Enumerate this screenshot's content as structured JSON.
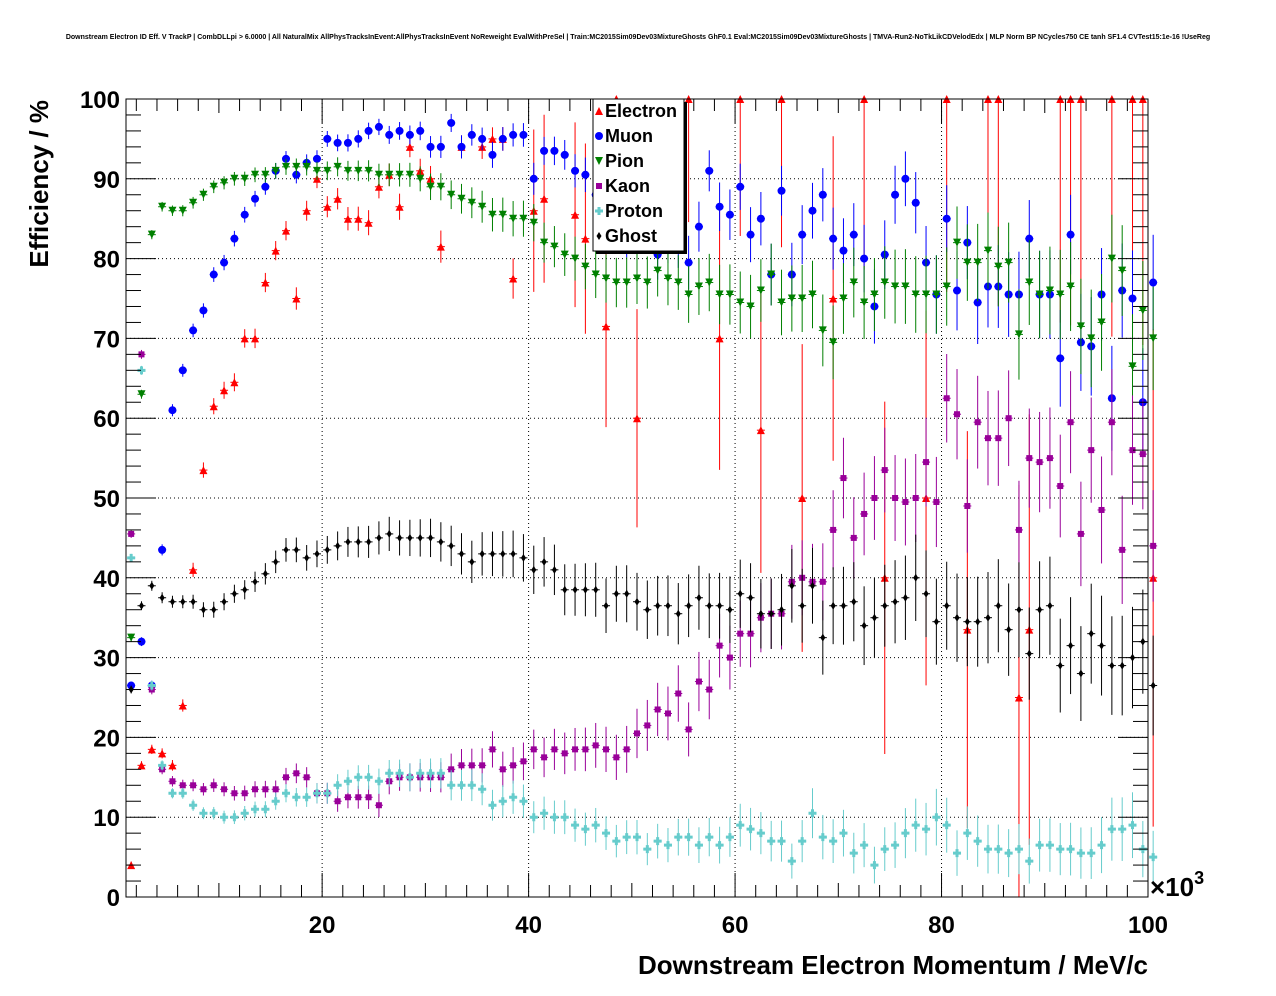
{
  "title": "Downstream Electron ID Eff. V TrackP | CombDLLpi > 6.0000 | All NaturalMix AllPhysTracksInEvent:AllPhysTracksInEvent NoReweight EvalWithPreSel | Train:MC2015Sim09Dev03MixtureGhosts GhF0.1 Eval:MC2015Sim09Dev03MixtureGhosts | TMVA-Run2-NoTkLikCDVelodEdx | MLP Norm BP NCycles750 CE tanh SF1.4 CVTest15:1e-16 !UseReg",
  "chart_data": {
    "type": "scatter",
    "title": "Downstream Electron ID Eff. V TrackP | CombDLLpi > 6.0000 | All NaturalMix AllPhysTracksInEvent:AllPhysTracksInEvent NoReweight EvalWithPreSel | Train:MC2015Sim09Dev03MixtureGhosts GhF0.1 Eval:MC2015Sim09Dev03MixtureGhosts | TMVA-Run2-NoTkLikCDVelodEdx | MLP Norm BP NCycles750 CE tanh SF1.4 CVTest15:1e-16 !UseReg",
    "xlabel": "Downstream Electron Momentum / MeV/c",
    "ylabel": "Efficiency / %",
    "x_multiplier": "×10^3",
    "x_multiplier_base": "×10",
    "x_multiplier_exp": "3",
    "xlim": [
      1,
      100
    ],
    "ylim": [
      0,
      100
    ],
    "xticks": [
      20,
      40,
      60,
      80,
      100
    ],
    "yticks": [
      0,
      10,
      20,
      30,
      40,
      50,
      60,
      70,
      80,
      90,
      100
    ],
    "xtick_labels": [
      "20",
      "40",
      "60",
      "80",
      "100"
    ],
    "ytick_labels": [
      "0",
      "10",
      "20",
      "30",
      "40",
      "50",
      "60",
      "70",
      "80",
      "90",
      "100"
    ],
    "grid": true,
    "legend_position": "top-center",
    "series": [
      {
        "name": "Electron",
        "color": "#ff0000",
        "marker": "triangle-up",
        "x": [
          1.5,
          2.5,
          3.5,
          4.5,
          5.5,
          6.5,
          7.5,
          8.5,
          9.5,
          10.5,
          11.5,
          12.5,
          13.5,
          14.5,
          15.5,
          16.5,
          17.5,
          18.5,
          19.5,
          20.5,
          21.5,
          22.5,
          23.5,
          24.5,
          25.5,
          26.5,
          27.5,
          28.5,
          29.5,
          30.5,
          31.5,
          33.5,
          35.5,
          36.5,
          37.5,
          38.5,
          40.5,
          41.5,
          44.5,
          45.5,
          47.5,
          48.5,
          50.5,
          55.5,
          58.5,
          60.5,
          62.5,
          64.5,
          66.5,
          69.5,
          72.5,
          74.5,
          78.5,
          80.5,
          82.5,
          84.5,
          85.5,
          87.5,
          88.5,
          91.5,
          92.5,
          93.5,
          96.5,
          98.5,
          99.5,
          100.5
        ],
        "y": [
          4,
          16.5,
          18.5,
          18,
          16.5,
          24,
          41,
          53.5,
          61.5,
          63.5,
          64.5,
          70,
          70,
          77,
          81,
          83.5,
          75,
          86,
          90,
          86.5,
          87.5,
          85,
          85,
          84.5,
          89,
          90.5,
          86.5,
          94,
          91,
          90,
          81.5,
          94,
          94,
          95,
          95,
          77.5,
          86,
          87.5,
          85.5,
          82.5,
          71.5,
          100,
          60,
          100,
          70,
          100,
          58.5,
          100,
          50,
          75,
          100,
          40,
          50,
          100,
          33.5,
          100,
          100,
          25,
          33.5,
          100,
          100,
          100,
          100,
          100,
          100,
          40
        ]
      },
      {
        "name": "Muon",
        "color": "#0000ff",
        "marker": "circle",
        "x": [
          1.5,
          2.5,
          3.5,
          4.5,
          5.5,
          6.5,
          7.5,
          8.5,
          9.5,
          10.5,
          11.5,
          12.5,
          13.5,
          14.5,
          15.5,
          16.5,
          17.5,
          18.5,
          19.5,
          20.5,
          21.5,
          22.5,
          23.5,
          24.5,
          25.5,
          26.5,
          27.5,
          28.5,
          29.5,
          30.5,
          31.5,
          32.5,
          33.5,
          34.5,
          35.5,
          36.5,
          37.5,
          38.5,
          39.5,
          40.5,
          41.5,
          42.5,
          43.5,
          44.5,
          45.5,
          46.5,
          47.5,
          48.5,
          49.5,
          50.5,
          51.5,
          52.5,
          53.5,
          54.5,
          55.5,
          56.5,
          57.5,
          58.5,
          59.5,
          60.5,
          61.5,
          62.5,
          63.5,
          64.5,
          65.5,
          66.5,
          67.5,
          68.5,
          69.5,
          70.5,
          71.5,
          72.5,
          73.5,
          74.5,
          75.5,
          76.5,
          77.5,
          78.5,
          79.5,
          80.5,
          81.5,
          82.5,
          83.5,
          84.5,
          85.5,
          86.5,
          87.5,
          88.5,
          89.5,
          90.5,
          91.5,
          92.5,
          93.5,
          94.5,
          95.5,
          96.5,
          97.5,
          98.5,
          99.5,
          100.5
        ],
        "y": [
          26.5,
          32,
          26.5,
          43.5,
          61,
          66,
          71,
          73.5,
          78,
          79.5,
          82.5,
          85.5,
          87.5,
          89,
          91,
          92.5,
          90.5,
          92,
          92.5,
          95,
          94.5,
          94.5,
          95,
          96,
          96.5,
          95.5,
          96,
          95.5,
          96,
          94,
          94,
          97,
          94,
          95.5,
          95,
          93,
          95,
          95.5,
          95.5,
          90,
          93.5,
          93.5,
          93,
          91,
          90.5,
          88,
          86.5,
          84,
          83,
          85,
          87,
          80.5,
          82.5,
          82,
          79.5,
          84,
          91,
          86.5,
          85.5,
          89,
          83,
          85,
          78,
          88.5,
          78,
          83,
          86,
          88,
          82.5,
          81,
          83,
          80,
          74,
          80.5,
          88,
          90,
          87,
          79.5,
          75.5,
          85,
          76,
          82,
          74.5,
          76.5,
          76.5,
          75.5,
          75.5,
          82.5,
          75.5,
          75.5,
          67.5,
          83,
          69.5,
          69,
          75.5,
          62.5,
          76,
          75,
          62,
          77
        ]
      },
      {
        "name": "Pion",
        "color": "#008000",
        "marker": "triangle-down",
        "x": [
          1.5,
          2.5,
          3.5,
          4.5,
          5.5,
          6.5,
          7.5,
          8.5,
          9.5,
          10.5,
          11.5,
          12.5,
          13.5,
          14.5,
          15.5,
          16.5,
          17.5,
          18.5,
          19.5,
          20.5,
          21.5,
          22.5,
          23.5,
          24.5,
          25.5,
          26.5,
          27.5,
          28.5,
          29.5,
          30.5,
          31.5,
          32.5,
          33.5,
          34.5,
          35.5,
          36.5,
          37.5,
          38.5,
          39.5,
          40.5,
          41.5,
          42.5,
          43.5,
          44.5,
          45.5,
          46.5,
          47.5,
          48.5,
          49.5,
          50.5,
          51.5,
          52.5,
          53.5,
          54.5,
          55.5,
          56.5,
          57.5,
          58.5,
          59.5,
          60.5,
          61.5,
          62.5,
          63.5,
          64.5,
          65.5,
          66.5,
          67.5,
          68.5,
          69.5,
          70.5,
          71.5,
          72.5,
          73.5,
          74.5,
          75.5,
          76.5,
          77.5,
          78.5,
          79.5,
          80.5,
          81.5,
          82.5,
          83.5,
          84.5,
          85.5,
          86.5,
          87.5,
          88.5,
          89.5,
          90.5,
          91.5,
          92.5,
          93.5,
          94.5,
          95.5,
          96.5,
          97.5,
          98.5,
          99.5,
          100.5
        ],
        "y": [
          32.5,
          63,
          83,
          86.5,
          86,
          86,
          87,
          88,
          89,
          89.5,
          90,
          90,
          90.5,
          90.5,
          91,
          91.5,
          91.5,
          91.5,
          91,
          91,
          91.5,
          91,
          91,
          91,
          90.5,
          90.5,
          90.5,
          90.5,
          90,
          89,
          89,
          88,
          87.5,
          87,
          86.5,
          85.5,
          85.5,
          85,
          85,
          84.5,
          82,
          81.5,
          80.5,
          80,
          79,
          78,
          77.5,
          77,
          77,
          77.5,
          77,
          78.5,
          77.5,
          77,
          75.5,
          76.5,
          77,
          75.5,
          75.5,
          74.5,
          74,
          76,
          78,
          74.5,
          75,
          75,
          75.5,
          71,
          69.5,
          75,
          77,
          74.5,
          75.5,
          77,
          76.5,
          76.5,
          75.5,
          75.5,
          75.5,
          76.5,
          82,
          79.5,
          79.5,
          81,
          79,
          79.5,
          70.5,
          77,
          75.5,
          76,
          75.5,
          76.5,
          71.5,
          70,
          72,
          80,
          78.5,
          66.5,
          73.5,
          70
        ]
      },
      {
        "name": "Kaon",
        "color": "#990099",
        "marker": "square",
        "x": [
          1.5,
          2.5,
          3.5,
          4.5,
          5.5,
          6.5,
          7.5,
          8.5,
          9.5,
          10.5,
          11.5,
          12.5,
          13.5,
          14.5,
          15.5,
          16.5,
          17.5,
          18.5,
          19.5,
          20.5,
          21.5,
          22.5,
          23.5,
          24.5,
          25.5,
          26.5,
          27.5,
          28.5,
          29.5,
          30.5,
          31.5,
          32.5,
          33.5,
          34.5,
          35.5,
          36.5,
          37.5,
          38.5,
          39.5,
          40.5,
          41.5,
          42.5,
          43.5,
          44.5,
          45.5,
          46.5,
          47.5,
          48.5,
          49.5,
          50.5,
          51.5,
          52.5,
          53.5,
          54.5,
          55.5,
          56.5,
          57.5,
          58.5,
          59.5,
          60.5,
          61.5,
          62.5,
          63.5,
          64.5,
          65.5,
          66.5,
          67.5,
          68.5,
          69.5,
          70.5,
          71.5,
          72.5,
          73.5,
          74.5,
          75.5,
          76.5,
          77.5,
          78.5,
          79.5,
          80.5,
          81.5,
          82.5,
          83.5,
          84.5,
          85.5,
          86.5,
          87.5,
          88.5,
          89.5,
          90.5,
          91.5,
          92.5,
          93.5,
          94.5,
          95.5,
          96.5,
          97.5,
          98.5,
          99.5,
          100.5
        ],
        "y": [
          45.5,
          68,
          26,
          16,
          14.5,
          14,
          14,
          13.5,
          14,
          13.5,
          13,
          13,
          13.5,
          13.5,
          13.5,
          15,
          15.5,
          15,
          13,
          13,
          12,
          12.5,
          12.5,
          12.5,
          11.5,
          14.5,
          15,
          15,
          15,
          15,
          15,
          16,
          16.5,
          16.5,
          16.5,
          18.5,
          16,
          16.5,
          17,
          18.5,
          17.5,
          18.5,
          18,
          18.5,
          18.5,
          19,
          18.5,
          17.5,
          18.5,
          20.5,
          21.5,
          23.5,
          23,
          25.5,
          21,
          27,
          26,
          31.5,
          30,
          33,
          33,
          35,
          35.5,
          35.5,
          39.5,
          40,
          39.5,
          39.5,
          46,
          52.5,
          45,
          48,
          50,
          53.5,
          50,
          49.5,
          50,
          54.5,
          49.5,
          62.5,
          60.5,
          49,
          59.5,
          57.5,
          57.5,
          60,
          46,
          55,
          54.5,
          55,
          51.5,
          59.5,
          45.5,
          56,
          48.5,
          59.5,
          43.5,
          56,
          55.5,
          44
        ]
      },
      {
        "name": "Proton",
        "color": "#66cccc",
        "marker": "cross",
        "x": [
          1.5,
          2.5,
          3.5,
          4.5,
          5.5,
          6.5,
          7.5,
          8.5,
          9.5,
          10.5,
          11.5,
          12.5,
          13.5,
          14.5,
          15.5,
          16.5,
          17.5,
          18.5,
          19.5,
          20.5,
          21.5,
          22.5,
          23.5,
          24.5,
          25.5,
          26.5,
          27.5,
          28.5,
          29.5,
          30.5,
          31.5,
          32.5,
          33.5,
          34.5,
          35.5,
          36.5,
          37.5,
          38.5,
          39.5,
          40.5,
          41.5,
          42.5,
          43.5,
          44.5,
          45.5,
          46.5,
          47.5,
          48.5,
          49.5,
          50.5,
          51.5,
          52.5,
          53.5,
          54.5,
          55.5,
          56.5,
          57.5,
          58.5,
          59.5,
          60.5,
          61.5,
          62.5,
          63.5,
          64.5,
          65.5,
          66.5,
          67.5,
          68.5,
          69.5,
          70.5,
          71.5,
          72.5,
          73.5,
          74.5,
          75.5,
          76.5,
          77.5,
          78.5,
          79.5,
          80.5,
          81.5,
          82.5,
          83.5,
          84.5,
          85.5,
          86.5,
          87.5,
          88.5,
          89.5,
          90.5,
          91.5,
          92.5,
          93.5,
          94.5,
          95.5,
          96.5,
          97.5,
          98.5,
          99.5,
          100.5
        ],
        "y": [
          42.5,
          66,
          26.5,
          16.5,
          13,
          13,
          11.5,
          10.5,
          10.5,
          10,
          10,
          10.5,
          11,
          11,
          12,
          13,
          12.5,
          12.5,
          13,
          13,
          14,
          14.5,
          15,
          15,
          14.5,
          15.5,
          15.5,
          15,
          15.5,
          15.5,
          15.5,
          14,
          14,
          14,
          13.5,
          11.5,
          12,
          12.5,
          12,
          10,
          10.5,
          10,
          10,
          9,
          8.5,
          9,
          8,
          7,
          7.5,
          7.5,
          6,
          7,
          6.5,
          7.5,
          7.5,
          6.5,
          7.5,
          6.5,
          7.5,
          9,
          8.5,
          8,
          7,
          7,
          4.5,
          7,
          10.5,
          7.5,
          7,
          8,
          5.5,
          6.5,
          4,
          6,
          6.5,
          8,
          9,
          8.5,
          10,
          9,
          5.5,
          8,
          7,
          6,
          6,
          5.5,
          6,
          4.5,
          6.5,
          6.5,
          6,
          6,
          5.5,
          5.5,
          6.5,
          8.5,
          8.5,
          9,
          6,
          5
        ]
      },
      {
        "name": "Ghost",
        "color": "#000000",
        "marker": "diamond",
        "x": [
          1.5,
          2.5,
          3.5,
          4.5,
          5.5,
          6.5,
          7.5,
          8.5,
          9.5,
          10.5,
          11.5,
          12.5,
          13.5,
          14.5,
          15.5,
          16.5,
          17.5,
          18.5,
          19.5,
          20.5,
          21.5,
          22.5,
          23.5,
          24.5,
          25.5,
          26.5,
          27.5,
          28.5,
          29.5,
          30.5,
          31.5,
          32.5,
          33.5,
          34.5,
          35.5,
          36.5,
          37.5,
          38.5,
          39.5,
          40.5,
          41.5,
          42.5,
          43.5,
          44.5,
          45.5,
          46.5,
          47.5,
          48.5,
          49.5,
          50.5,
          51.5,
          52.5,
          53.5,
          54.5,
          55.5,
          56.5,
          57.5,
          58.5,
          59.5,
          60.5,
          61.5,
          62.5,
          63.5,
          64.5,
          65.5,
          66.5,
          67.5,
          68.5,
          69.5,
          70.5,
          71.5,
          72.5,
          73.5,
          74.5,
          75.5,
          76.5,
          77.5,
          78.5,
          79.5,
          80.5,
          81.5,
          82.5,
          83.5,
          84.5,
          85.5,
          86.5,
          87.5,
          88.5,
          89.5,
          90.5,
          91.5,
          92.5,
          93.5,
          94.5,
          95.5,
          96.5,
          97.5,
          98.5,
          99.5,
          100.5
        ],
        "y": [
          26,
          36.5,
          39,
          37.5,
          37,
          37,
          37,
          36,
          36,
          37,
          38,
          38.5,
          39.5,
          40.5,
          42,
          43.5,
          43.5,
          42.5,
          43,
          43.5,
          44,
          44.5,
          44.5,
          44.5,
          45,
          45.5,
          45,
          45,
          45,
          45,
          44.5,
          44,
          43,
          42,
          43,
          43,
          43,
          43,
          42.5,
          41,
          42,
          41,
          38.5,
          38.5,
          38.5,
          38.5,
          36.5,
          38,
          38,
          37,
          36,
          36.5,
          36.5,
          35.5,
          36.5,
          37.5,
          36.5,
          36.5,
          36,
          38,
          37.5,
          35.5,
          35.5,
          36,
          39,
          36.5,
          39,
          32.5,
          36.5,
          36.5,
          37,
          34,
          35,
          36.5,
          37,
          37.5,
          40,
          38,
          34.5,
          36.5,
          35,
          34.5,
          34.5,
          35,
          36.5,
          33.5,
          36,
          30.5,
          36,
          36.5,
          29,
          31.5,
          28,
          33,
          31.5,
          29,
          29,
          30,
          32,
          26.5
        ]
      }
    ]
  }
}
